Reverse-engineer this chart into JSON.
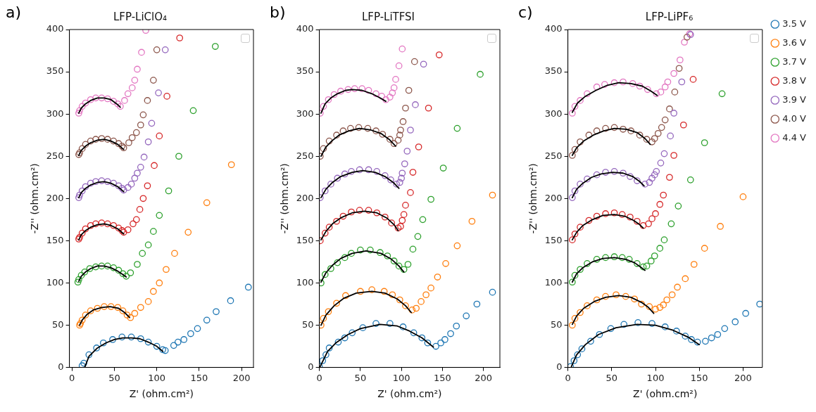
{
  "chart_data": [
    {
      "type": "scatter",
      "title": "LFP-LiClO₄",
      "xlabel": "Z' (ohm.cm²)",
      "ylabel": "-Z'' (ohm.cm²)",
      "annotations": [
        "a)"
      ],
      "xlim": [
        -3,
        214
      ],
      "ylim": [
        0,
        400
      ],
      "xticks": [
        0,
        50,
        100,
        150,
        200
      ],
      "yticks": [
        0,
        50,
        100,
        150,
        200,
        250,
        300,
        350,
        400
      ],
      "marker": "circle",
      "series": [
        {
          "color": "#1f77b4",
          "x": [
            12,
            14,
            20,
            29,
            37,
            48,
            59,
            70,
            81,
            90,
            100,
            107,
            110,
            120,
            125,
            132,
            140,
            148,
            159,
            170,
            187,
            208
          ],
          "values": [
            2,
            5,
            15,
            23,
            29,
            33,
            36,
            36,
            34,
            30,
            25,
            21,
            20,
            26,
            30,
            33,
            40,
            46,
            56,
            66,
            79,
            95
          ]
        },
        {
          "color": "#ff7f0e",
          "x": [
            9,
            10,
            12,
            16,
            22,
            30,
            38,
            46,
            54,
            60,
            65,
            69,
            74,
            81,
            90,
            96,
            103,
            111,
            121,
            137,
            159,
            188
          ],
          "values": [
            50,
            52,
            56,
            62,
            67,
            70,
            72,
            72,
            71,
            67,
            62,
            59,
            64,
            71,
            78,
            90,
            100,
            116,
            135,
            160,
            195,
            240
          ]
        },
        {
          "color": "#2ca02c",
          "x": [
            7,
            8,
            11,
            15,
            21,
            28,
            35,
            42,
            49,
            55,
            60,
            64,
            69,
            77,
            83,
            90,
            96,
            103,
            114,
            126,
            143,
            169
          ],
          "values": [
            101,
            104,
            109,
            113,
            117,
            119,
            120,
            120,
            118,
            115,
            111,
            108,
            112,
            122,
            135,
            145,
            161,
            180,
            209,
            250,
            304,
            380
          ]
        },
        {
          "color": "#d62728",
          "x": [
            8,
            9,
            12,
            16,
            22,
            28,
            35,
            42,
            49,
            55,
            59,
            61,
            66,
            72,
            76,
            80,
            84,
            89,
            97,
            103,
            112,
            127
          ],
          "values": [
            152,
            154,
            159,
            164,
            168,
            170,
            171,
            170,
            168,
            165,
            162,
            160,
            163,
            170,
            175,
            187,
            200,
            215,
            239,
            274,
            321,
            390
          ]
        },
        {
          "color": "#9467bd",
          "x": [
            8,
            9,
            12,
            16,
            22,
            28,
            35,
            42,
            49,
            55,
            59,
            61,
            66,
            70,
            74,
            77,
            81,
            85,
            90,
            94,
            102,
            110
          ],
          "values": [
            201,
            204,
            209,
            214,
            218,
            220,
            221,
            220,
            218,
            215,
            212,
            210,
            213,
            217,
            224,
            230,
            237,
            249,
            267,
            289,
            325,
            376
          ]
        },
        {
          "color": "#8c564b",
          "x": [
            8,
            9,
            12,
            16,
            22,
            28,
            35,
            42,
            49,
            55,
            59,
            61,
            67,
            71,
            76,
            81,
            84,
            89,
            96,
            100
          ],
          "values": [
            252,
            254,
            259,
            264,
            268,
            270,
            271,
            270,
            268,
            265,
            262,
            260,
            266,
            272,
            278,
            287,
            299,
            316,
            340,
            376
          ]
        },
        {
          "color": "#e377c2",
          "x": [
            8,
            9,
            12,
            16,
            22,
            28,
            35,
            42,
            49,
            54,
            57,
            62,
            66,
            71,
            74,
            77,
            82,
            87
          ],
          "values": [
            301,
            304,
            309,
            313,
            317,
            319,
            319,
            318,
            315,
            312,
            309,
            316,
            324,
            331,
            340,
            353,
            373,
            399
          ]
        },
        {
          "type": "line",
          "marker": "none",
          "color": "#000000",
          "x": [
            15,
            20,
            30,
            40,
            50,
            60,
            70,
            80,
            90,
            100,
            107
          ],
          "values": [
            0,
            13,
            23,
            29,
            33,
            35,
            35,
            34,
            30,
            25,
            19
          ]
        },
        {
          "type": "line",
          "marker": "none",
          "color": "#000000",
          "x": [
            9,
            12,
            18,
            25,
            35,
            45,
            55,
            62,
            68
          ],
          "values": [
            50,
            56,
            63,
            68,
            71,
            72,
            70,
            65,
            59
          ]
        },
        {
          "type": "line",
          "marker": "none",
          "color": "#000000",
          "x": [
            8,
            11,
            16,
            22,
            30,
            38,
            46,
            54,
            60,
            64
          ],
          "values": [
            102,
            108,
            113,
            117,
            120,
            120,
            118,
            114,
            110,
            107
          ]
        },
        {
          "type": "line",
          "marker": "none",
          "color": "#000000",
          "x": [
            8,
            11,
            16,
            22,
            30,
            38,
            46,
            54,
            61
          ],
          "values": [
            151,
            157,
            162,
            166,
            169,
            170,
            168,
            164,
            158
          ]
        },
        {
          "type": "line",
          "marker": "none",
          "color": "#000000",
          "x": [
            8,
            11,
            16,
            22,
            30,
            38,
            46,
            54,
            61
          ],
          "values": [
            201,
            207,
            212,
            216,
            219,
            220,
            218,
            214,
            208
          ]
        },
        {
          "type": "line",
          "marker": "none",
          "color": "#000000",
          "x": [
            8,
            11,
            16,
            22,
            30,
            38,
            46,
            54,
            61
          ],
          "values": [
            251,
            257,
            262,
            266,
            269,
            270,
            268,
            264,
            258
          ]
        },
        {
          "type": "line",
          "marker": "none",
          "color": "#000000",
          "x": [
            8,
            11,
            16,
            22,
            30,
            38,
            46,
            54,
            57
          ],
          "values": [
            301,
            307,
            312,
            316,
            319,
            319,
            317,
            311,
            308
          ]
        }
      ]
    },
    {
      "type": "scatter",
      "title": "LFP-LiTFSI",
      "xlabel": "Z' (ohm.cm²)",
      "ylabel": "-Z'' (ohm.cm²)",
      "annotations": [
        "b)"
      ],
      "xlim": [
        0,
        220
      ],
      "ylim": [
        0,
        400
      ],
      "xticks": [
        0,
        50,
        100,
        150,
        200
      ],
      "yticks": [
        0,
        50,
        100,
        150,
        200,
        250,
        300,
        350,
        400
      ],
      "marker": "circle",
      "series": [
        {
          "color": "#1f77b4",
          "x": [
            0,
            4,
            8,
            12,
            23,
            31,
            40,
            53,
            69,
            86,
            102,
            115,
            125,
            132,
            142,
            148,
            153,
            160,
            167,
            179,
            192,
            211
          ],
          "values": [
            1,
            8,
            15,
            23,
            30,
            35,
            41,
            47,
            52,
            52,
            48,
            41,
            35,
            29,
            25,
            29,
            33,
            40,
            49,
            61,
            75,
            89
          ]
        },
        {
          "color": "#ff7f0e",
          "x": [
            2,
            5,
            11,
            21,
            32,
            50,
            64,
            79,
            89,
            98,
            105,
            113,
            118,
            124,
            130,
            136,
            144,
            154,
            168,
            186,
            211
          ],
          "values": [
            50,
            58,
            66,
            76,
            85,
            90,
            92,
            90,
            86,
            80,
            73,
            68,
            70,
            78,
            86,
            94,
            107,
            123,
            144,
            173,
            204
          ]
        },
        {
          "color": "#2ca02c",
          "x": [
            2,
            7,
            14,
            22,
            31,
            39,
            50,
            62,
            74,
            83,
            91,
            97,
            103,
            108,
            114,
            120,
            126,
            136,
            151,
            168,
            196
          ],
          "values": [
            100,
            110,
            117,
            124,
            130,
            135,
            139,
            139,
            136,
            132,
            126,
            120,
            116,
            122,
            140,
            155,
            175,
            199,
            236,
            283,
            347
          ]
        },
        {
          "color": "#d62728",
          "x": [
            1,
            7,
            12,
            21,
            29,
            39,
            49,
            60,
            70,
            80,
            88,
            96,
            99,
            101,
            103,
            105,
            111,
            114,
            121,
            133,
            146
          ],
          "values": [
            150,
            159,
            166,
            173,
            179,
            184,
            186,
            186,
            183,
            178,
            171,
            165,
            167,
            174,
            181,
            192,
            207,
            231,
            261,
            307,
            370
          ]
        },
        {
          "color": "#9467bd",
          "x": [
            1,
            7,
            14,
            22,
            31,
            39,
            49,
            60,
            70,
            80,
            87,
            94,
            98,
            100,
            101,
            104,
            107,
            111,
            117,
            127
          ],
          "values": [
            201,
            209,
            217,
            224,
            229,
            232,
            234,
            234,
            232,
            227,
            222,
            217,
            219,
            224,
            230,
            241,
            256,
            281,
            311,
            359
          ]
        },
        {
          "color": "#8c564b",
          "x": [
            1,
            5,
            12,
            21,
            29,
            38,
            48,
            59,
            69,
            77,
            86,
            91,
            96,
            98,
            99,
            102,
            105,
            109,
            116
          ],
          "values": [
            250,
            259,
            268,
            275,
            280,
            283,
            284,
            283,
            280,
            276,
            270,
            265,
            269,
            275,
            281,
            291,
            307,
            328,
            362
          ]
        },
        {
          "color": "#e377c2",
          "x": [
            1,
            5,
            11,
            18,
            26,
            35,
            43,
            52,
            60,
            69,
            76,
            81,
            86,
            89,
            91,
            93,
            97,
            101
          ],
          "values": [
            301,
            309,
            317,
            323,
            327,
            329,
            330,
            330,
            328,
            324,
            321,
            317,
            320,
            325,
            331,
            341,
            357,
            377
          ]
        },
        {
          "type": "line",
          "marker": "none",
          "color": "#000000",
          "x": [
            1,
            10,
            20,
            35,
            50,
            74,
            95,
            110,
            125,
            139
          ],
          "values": [
            1,
            19,
            29,
            39,
            46,
            51,
            49,
            43,
            35,
            24
          ]
        },
        {
          "type": "line",
          "marker": "none",
          "color": "#000000",
          "x": [
            2,
            8,
            18,
            30,
            45,
            64,
            80,
            95,
            105,
            112
          ],
          "values": [
            50,
            62,
            73,
            82,
            88,
            90,
            88,
            81,
            73,
            65
          ]
        },
        {
          "type": "line",
          "marker": "none",
          "color": "#000000",
          "x": [
            2,
            8,
            16,
            26,
            40,
            57,
            75,
            88,
            97,
            103
          ],
          "values": [
            101,
            112,
            121,
            129,
            135,
            138,
            135,
            128,
            120,
            113
          ]
        },
        {
          "type": "line",
          "marker": "none",
          "color": "#000000",
          "x": [
            2,
            8,
            16,
            26,
            40,
            55,
            70,
            82,
            91,
            96
          ],
          "values": [
            151,
            161,
            170,
            177,
            183,
            185,
            183,
            177,
            169,
            162
          ]
        },
        {
          "type": "line",
          "marker": "none",
          "color": "#000000",
          "x": [
            2,
            8,
            16,
            26,
            40,
            53,
            68,
            80,
            90,
            97
          ],
          "values": [
            201,
            211,
            219,
            226,
            231,
            233,
            231,
            226,
            219,
            212
          ]
        },
        {
          "type": "line",
          "marker": "none",
          "color": "#000000",
          "x": [
            2,
            8,
            15,
            24,
            36,
            49,
            63,
            75,
            85,
            93
          ],
          "values": [
            250,
            261,
            268,
            275,
            280,
            283,
            281,
            277,
            270,
            262
          ]
        },
        {
          "type": "line",
          "marker": "none",
          "color": "#000000",
          "x": [
            2,
            7,
            14,
            22,
            32,
            40,
            52,
            64,
            74,
            81
          ],
          "values": [
            301,
            312,
            319,
            324,
            328,
            329,
            328,
            324,
            319,
            315
          ]
        }
      ]
    },
    {
      "type": "scatter",
      "title": "LFP-LiPF₆",
      "xlabel": "Z' (ohm.cm²)",
      "ylabel": "-Z'' (ohm.cm²)",
      "annotations": [
        "c)"
      ],
      "xlim": [
        0,
        222
      ],
      "ylim": [
        0,
        400
      ],
      "xticks": [
        0,
        50,
        100,
        150,
        200
      ],
      "yticks": [
        0,
        50,
        100,
        150,
        200,
        250,
        300,
        350,
        400
      ],
      "marker": "circle",
      "legend": "right",
      "series": [
        {
          "name": "3.5 V",
          "color": "#1f77b4",
          "x": [
            3,
            7,
            11,
            16,
            26,
            36,
            49,
            64,
            80,
            96,
            111,
            124,
            134,
            141,
            148,
            157,
            164,
            171,
            179,
            191,
            203,
            219
          ],
          "values": [
            1,
            8,
            15,
            22,
            31,
            39,
            46,
            51,
            53,
            52,
            48,
            43,
            37,
            33,
            30,
            31,
            35,
            39,
            46,
            54,
            64,
            75
          ]
        },
        {
          "name": "3.6 V",
          "color": "#ff7f0e",
          "x": [
            5,
            8,
            14,
            22,
            33,
            43,
            55,
            66,
            76,
            84,
            93,
            100,
            105,
            109,
            113,
            119,
            125,
            134,
            144,
            156,
            174,
            200
          ],
          "values": [
            50,
            58,
            65,
            73,
            80,
            84,
            86,
            84,
            81,
            75,
            72,
            69,
            71,
            74,
            80,
            86,
            95,
            105,
            122,
            141,
            167,
            202
          ]
        },
        {
          "name": "3.7 V",
          "color": "#2ca02c",
          "x": [
            5,
            8,
            14,
            22,
            33,
            43,
            53,
            62,
            70,
            79,
            86,
            90,
            95,
            99,
            105,
            110,
            118,
            126,
            140,
            156,
            176
          ],
          "values": [
            101,
            109,
            116,
            123,
            128,
            130,
            131,
            130,
            128,
            123,
            119,
            120,
            126,
            132,
            141,
            151,
            170,
            191,
            222,
            266,
            324
          ]
        },
        {
          "name": "3.8 V",
          "color": "#d62728",
          "x": [
            5,
            8,
            14,
            24,
            33,
            43,
            53,
            62,
            71,
            79,
            86,
            92,
            96,
            100,
            105,
            109,
            116,
            121,
            132,
            143
          ],
          "values": [
            151,
            158,
            166,
            174,
            179,
            182,
            183,
            181,
            178,
            173,
            168,
            170,
            176,
            182,
            193,
            204,
            225,
            251,
            287,
            341
          ]
        },
        {
          "name": "3.9 V",
          "color": "#9467bd",
          "x": [
            5,
            8,
            14,
            22,
            33,
            43,
            53,
            63,
            71,
            79,
            88,
            93,
            96,
            99,
            101,
            106,
            110,
            117,
            121,
            130,
            140
          ],
          "values": [
            201,
            209,
            217,
            223,
            228,
            231,
            232,
            230,
            226,
            221,
            217,
            219,
            224,
            228,
            232,
            242,
            253,
            274,
            301,
            338,
            394
          ]
        },
        {
          "name": "4.0 V",
          "color": "#8c564b",
          "x": [
            5,
            8,
            14,
            24,
            33,
            43,
            53,
            63,
            72,
            82,
            90,
            96,
            99,
            103,
            107,
            111,
            116,
            122,
            127,
            136
          ],
          "values": [
            251,
            258,
            267,
            275,
            280,
            283,
            284,
            282,
            280,
            275,
            270,
            267,
            271,
            277,
            284,
            293,
            306,
            326,
            354,
            391
          ]
        },
        {
          "name": "4.4 V",
          "color": "#e377c2",
          "x": [
            5,
            8,
            14,
            22,
            33,
            42,
            53,
            63,
            74,
            82,
            91,
            101,
            106,
            111,
            114,
            121,
            128,
            133,
            139
          ],
          "values": [
            301,
            309,
            316,
            324,
            332,
            335,
            337,
            338,
            336,
            333,
            329,
            324,
            326,
            332,
            338,
            348,
            364,
            385,
            395
          ]
        },
        {
          "type": "line",
          "marker": "none",
          "color": "#000000",
          "x": [
            4,
            10,
            20,
            35,
            55,
            79,
            100,
            120,
            137,
            150
          ],
          "values": [
            1,
            15,
            27,
            39,
            47,
            51,
            50,
            44,
            36,
            27
          ]
        },
        {
          "type": "line",
          "marker": "none",
          "color": "#000000",
          "x": [
            5,
            10,
            18,
            30,
            43,
            58,
            72,
            84,
            92,
            98
          ],
          "values": [
            51,
            61,
            70,
            78,
            83,
            85,
            83,
            77,
            71,
            64
          ]
        },
        {
          "type": "line",
          "marker": "none",
          "color": "#000000",
          "x": [
            5,
            10,
            17,
            28,
            40,
            53,
            66,
            76,
            84,
            88
          ],
          "values": [
            101,
            111,
            118,
            125,
            129,
            130,
            128,
            124,
            118,
            115
          ]
        },
        {
          "type": "line",
          "marker": "none",
          "color": "#000000",
          "x": [
            5,
            10,
            17,
            28,
            40,
            53,
            65,
            75,
            82,
            86
          ],
          "values": [
            151,
            160,
            168,
            175,
            180,
            181,
            179,
            174,
            169,
            165
          ]
        },
        {
          "type": "line",
          "marker": "none",
          "color": "#000000",
          "x": [
            5,
            10,
            17,
            27,
            38,
            51,
            63,
            74,
            82,
            87
          ],
          "values": [
            201,
            211,
            218,
            225,
            229,
            231,
            230,
            226,
            220,
            215
          ]
        },
        {
          "type": "line",
          "marker": "none",
          "color": "#000000",
          "x": [
            5,
            10,
            18,
            29,
            41,
            53,
            67,
            79,
            88,
            94
          ],
          "values": [
            251,
            260,
            268,
            275,
            280,
            283,
            282,
            278,
            271,
            264
          ]
        },
        {
          "type": "line",
          "marker": "none",
          "color": "#000000",
          "x": [
            5,
            11,
            20,
            32,
            45,
            58,
            72,
            85,
            95,
            102
          ],
          "values": [
            302,
            313,
            321,
            328,
            334,
            337,
            336,
            333,
            327,
            322
          ]
        }
      ]
    }
  ]
}
